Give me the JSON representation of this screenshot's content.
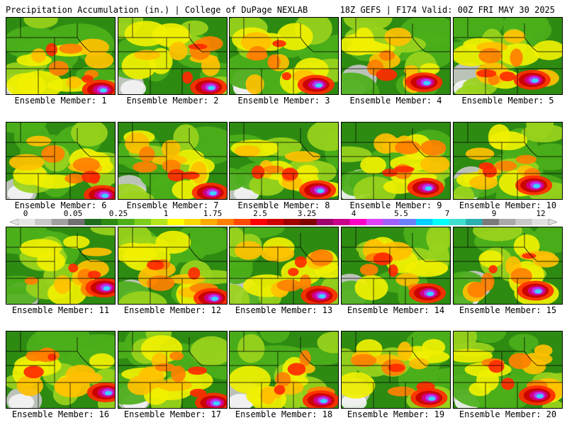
{
  "header": {
    "left": "Precipitation Accumulation (in.) | College of DuPage NEXLAB",
    "right": "18Z GEFS | F174 Valid: 00Z FRI MAY 30 2025"
  },
  "panels": [
    {
      "label": "Ensemble Member: 1"
    },
    {
      "label": "Ensemble Member: 2"
    },
    {
      "label": "Ensemble Member: 3"
    },
    {
      "label": "Ensemble Member: 4"
    },
    {
      "label": "Ensemble Member: 5"
    },
    {
      "label": "Ensemble Member: 6"
    },
    {
      "label": "Ensemble Member: 7"
    },
    {
      "label": "Ensemble Member: 8"
    },
    {
      "label": "Ensemble Member: 9"
    },
    {
      "label": "Ensemble Member: 10"
    },
    {
      "label": "Ensemble Member: 11"
    },
    {
      "label": "Ensemble Member: 12"
    },
    {
      "label": "Ensemble Member: 13"
    },
    {
      "label": "Ensemble Member: 14"
    },
    {
      "label": "Ensemble Member: 15"
    },
    {
      "label": "Ensemble Member: 16"
    },
    {
      "label": "Ensemble Member: 17"
    },
    {
      "label": "Ensemble Member: 18"
    },
    {
      "label": "Ensemble Member: 19"
    },
    {
      "label": "Ensemble Member: 20"
    }
  ],
  "colorbar": {
    "labels": [
      "0",
      "0.05",
      "0.25",
      "1",
      "1.75",
      "2.5",
      "3.25",
      "4",
      "5.5",
      "7",
      "9",
      "12"
    ],
    "colors": [
      "#e6e6e6",
      "#c8c8c8",
      "#a0a0a0",
      "#707070",
      "#1e6e1e",
      "#2e8b12",
      "#4caf1a",
      "#7ccd1c",
      "#b5e61d",
      "#ffff00",
      "#ffd700",
      "#ffaa00",
      "#ff7f00",
      "#ff4a00",
      "#ff0000",
      "#d00000",
      "#a00000",
      "#800000",
      "#a0006e",
      "#c8008c",
      "#ff00c8",
      "#e040fb",
      "#a060ff",
      "#6a80ff",
      "#00d0ff",
      "#00ffff",
      "#40e0d0",
      "#2ab0b0",
      "#7a7a7a",
      "#a8a8a8",
      "#c8c8c8",
      "#e0e0e0"
    ]
  }
}
